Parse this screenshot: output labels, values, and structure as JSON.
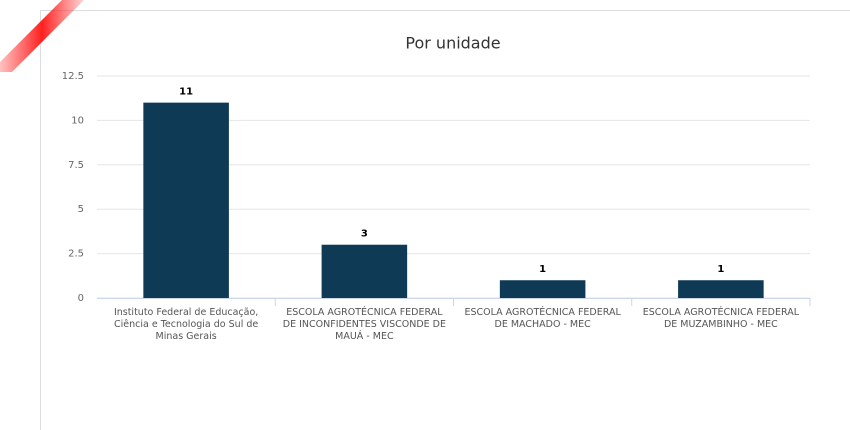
{
  "chart_data": {
    "type": "bar",
    "title": "Por unidade",
    "categories": [
      "Instituto Federal de Educação, Ciência e Tecnologia do Sul de Minas Gerais",
      "ESCOLA AGROTÉCNICA FEDERAL DE INCONFIDENTES VISCONDE DE MAUÁ - MEC",
      "ESCOLA AGROTÉCNICA FEDERAL DE MACHADO - MEC",
      "ESCOLA AGROTÉCNICA FEDERAL DE MUZAMBINHO - MEC"
    ],
    "values": [
      11,
      3,
      1,
      1
    ],
    "color": "#0f3a56",
    "ylim": [
      0,
      12.5
    ],
    "yticks": [
      0,
      2.5,
      5,
      7.5,
      10,
      12.5
    ],
    "grid": true
  }
}
